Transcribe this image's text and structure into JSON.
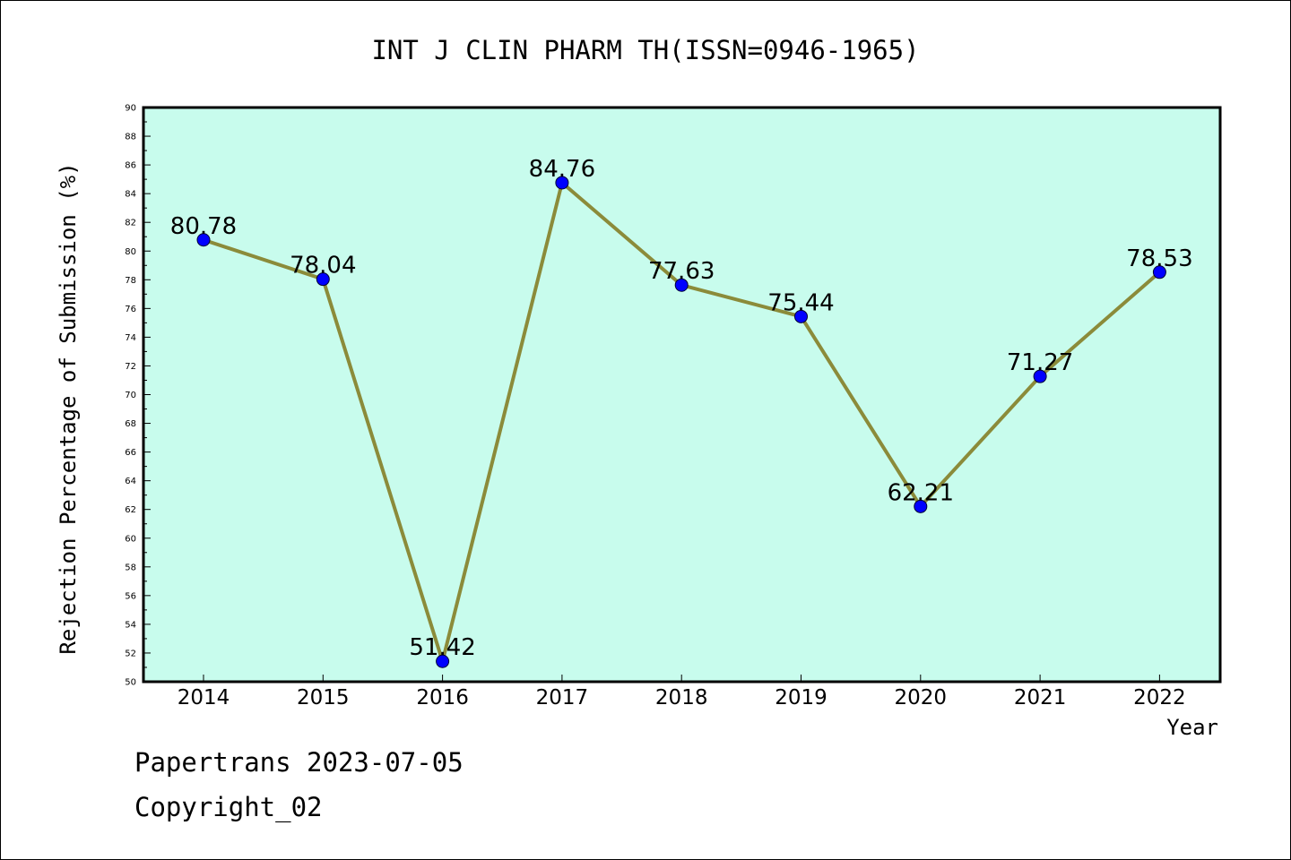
{
  "chart_data": {
    "type": "line",
    "title": "INT J CLIN PHARM TH(ISSN=0946-1965)",
    "xlabel": "Year",
    "ylabel": "Rejection Percentage of Submission (%)",
    "categories": [
      "2014",
      "2015",
      "2016",
      "2017",
      "2018",
      "2019",
      "2020",
      "2021",
      "2022"
    ],
    "values": [
      80.78,
      78.04,
      51.42,
      84.76,
      77.63,
      75.44,
      62.21,
      71.27,
      78.53
    ],
    "data_labels": [
      "80.78",
      "78.04",
      "51.42",
      "84.76",
      "77.63",
      "75.44",
      "62.21",
      "71.27",
      "78.53"
    ],
    "ylim": [
      50,
      90
    ],
    "ytick_step": 2,
    "grid": false,
    "colors": {
      "plot_background": "#c8fced",
      "line": "#8b8b3a",
      "marker": "#0000ff"
    }
  },
  "footer": {
    "line1": "Papertrans 2023-07-05",
    "line2": "Copyright_02"
  }
}
